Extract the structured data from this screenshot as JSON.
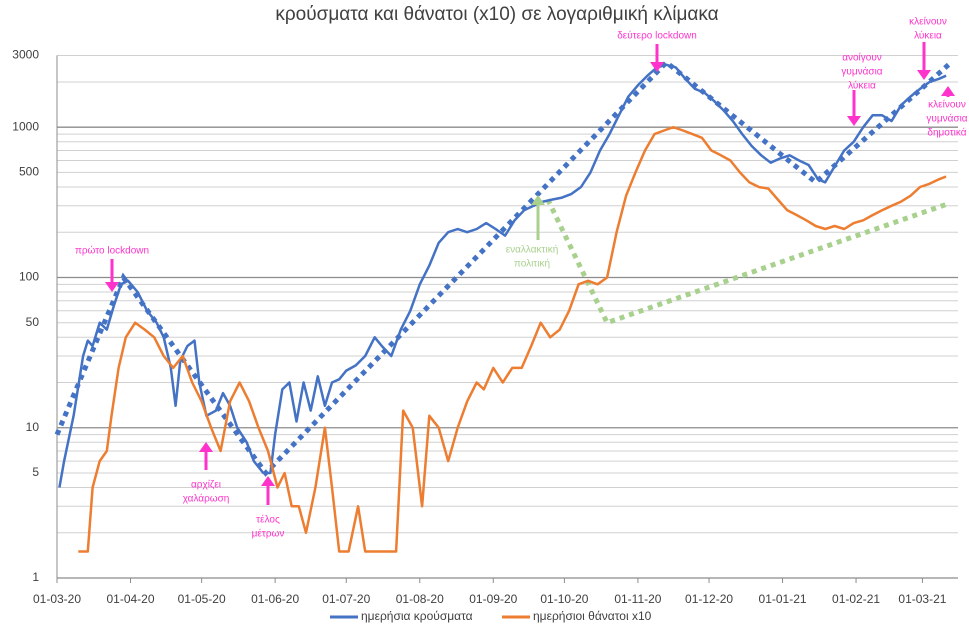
{
  "chart_data": {
    "type": "line",
    "title": "κρούσματα και θάνατοι (x10) σε λογαριθμική κλίμακα",
    "log_scale": true,
    "grid": true,
    "legend": "bottom",
    "xlim": [
      "01-03-20",
      "16-03-21"
    ],
    "xticks": [
      "01-03-20",
      "01-04-20",
      "01-05-20",
      "01-06-20",
      "01-07-20",
      "01-08-20",
      "01-09-20",
      "01-10-20",
      "01-11-20",
      "01-12-20",
      "01-01-21",
      "01-02-21",
      "01-03-21"
    ],
    "ylim": [
      1,
      3000
    ],
    "yticks": [
      1,
      5,
      10,
      50,
      100,
      500,
      1000,
      3000
    ],
    "minor_yticks": [
      2,
      3,
      4,
      5,
      6,
      7,
      8,
      9,
      20,
      30,
      40,
      50,
      60,
      70,
      80,
      90,
      200,
      300,
      400,
      500,
      600,
      700,
      800,
      900,
      2000,
      3000
    ],
    "series": [
      {
        "name": "ημερήσια κρούσματα",
        "color": "#4472c4",
        "x": [
          "02-03-20",
          "04-03-20",
          "08-03-20",
          "12-03-20",
          "14-03-20",
          "16-03-20",
          "19-03-20",
          "22-03-20",
          "25-03-20",
          "28-03-20",
          "31-03-20",
          "04-04-20",
          "08-04-20",
          "12-04-20",
          "15-04-20",
          "18-04-20",
          "20-04-20",
          "22-04-20",
          "25-04-20",
          "28-04-20",
          "30-04-20",
          "03-05-20",
          "07-05-20",
          "10-05-20",
          "13-05-20",
          "16-05-20",
          "20-05-20",
          "23-05-20",
          "27-05-20",
          "30-05-20",
          "01-06-20",
          "04-06-20",
          "07-06-20",
          "10-06-20",
          "13-06-20",
          "16-06-20",
          "19-06-20",
          "22-06-20",
          "25-06-20",
          "28-06-20",
          "01-07-20",
          "05-07-20",
          "09-07-20",
          "13-07-20",
          "16-07-20",
          "20-07-20",
          "24-07-20",
          "28-07-20",
          "01-08-20",
          "05-08-20",
          "09-08-20",
          "13-08-20",
          "17-08-20",
          "21-08-20",
          "25-08-20",
          "29-08-20",
          "02-09-20",
          "06-09-20",
          "10-09-20",
          "14-09-20",
          "18-09-20",
          "22-09-20",
          "26-09-20",
          "30-09-20",
          "04-10-20",
          "08-10-20",
          "12-10-20",
          "16-10-20",
          "20-10-20",
          "24-10-20",
          "28-10-20",
          "01-11-20",
          "05-11-20",
          "09-11-20",
          "13-11-20",
          "17-11-20",
          "21-11-20",
          "25-11-20",
          "29-11-20",
          "03-12-20",
          "07-12-20",
          "11-12-20",
          "15-12-20",
          "19-12-20",
          "23-12-20",
          "27-12-20",
          "31-12-20",
          "04-01-21",
          "08-01-21",
          "12-01-21",
          "16-01-21",
          "19-01-21",
          "23-01-21",
          "27-01-21",
          "31-01-21",
          "04-02-21",
          "08-02-21",
          "12-02-21",
          "16-02-21",
          "20-02-21",
          "24-02-21",
          "28-02-21",
          "04-03-21",
          "08-03-21",
          "11-03-21"
        ],
        "values": [
          4,
          6,
          12,
          30,
          38,
          35,
          50,
          45,
          65,
          90,
          95,
          80,
          60,
          50,
          40,
          25,
          14,
          28,
          35,
          38,
          20,
          12,
          13,
          17,
          14,
          10,
          8,
          6,
          5,
          5,
          9,
          18,
          20,
          11,
          20,
          13,
          22,
          14,
          20,
          21,
          24,
          26,
          30,
          40,
          35,
          30,
          45,
          60,
          90,
          120,
          170,
          200,
          210,
          200,
          210,
          230,
          210,
          190,
          240,
          280,
          300,
          320,
          330,
          340,
          360,
          400,
          500,
          700,
          900,
          1200,
          1600,
          1900,
          2200,
          2500,
          2600,
          2500,
          2100,
          1800,
          1700,
          1500,
          1300,
          1100,
          900,
          750,
          650,
          580,
          620,
          650,
          600,
          560,
          450,
          430,
          550,
          700,
          800,
          1000,
          1200,
          1200,
          1100,
          1400,
          1600,
          1800,
          2000,
          2100,
          2200
        ]
      },
      {
        "name": "ημερήσιοι θάνατοι x10",
        "color": "#ed7d31",
        "x": [
          "10-03-20",
          "14-03-20",
          "16-03-20",
          "19-03-20",
          "22-03-20",
          "24-03-20",
          "27-03-20",
          "30-03-20",
          "03-04-20",
          "07-04-20",
          "11-04-20",
          "15-04-20",
          "19-04-20",
          "23-04-20",
          "27-04-20",
          "01-05-20",
          "05-05-20",
          "09-05-20",
          "13-05-20",
          "17-05-20",
          "21-05-20",
          "25-05-20",
          "29-05-20",
          "02-06-20",
          "05-06-20",
          "08-06-20",
          "11-06-20",
          "14-06-20",
          "18-06-20",
          "22-06-20",
          "25-06-20",
          "28-06-20",
          "02-07-20",
          "06-07-20",
          "09-07-20",
          "14-07-20",
          "18-07-20",
          "22-07-20",
          "25-07-20",
          "29-07-20",
          "02-08-20",
          "05-08-20",
          "09-08-20",
          "13-08-20",
          "17-08-20",
          "21-08-20",
          "25-08-20",
          "28-08-20",
          "01-09-20",
          "05-09-20",
          "09-09-20",
          "13-09-20",
          "17-09-20",
          "21-09-20",
          "25-09-20",
          "29-09-20",
          "03-10-20",
          "07-10-20",
          "11-10-20",
          "15-10-20",
          "19-10-20",
          "23-10-20",
          "27-10-20",
          "31-10-20",
          "04-11-20",
          "08-11-20",
          "12-11-20",
          "16-11-20",
          "20-11-20",
          "24-11-20",
          "28-11-20",
          "02-12-20",
          "06-12-20",
          "10-12-20",
          "14-12-20",
          "18-12-20",
          "22-12-20",
          "26-12-20",
          "30-12-20",
          "03-01-21",
          "07-01-21",
          "11-01-21",
          "15-01-21",
          "19-01-21",
          "23-01-21",
          "27-01-21",
          "31-01-21",
          "04-02-21",
          "08-02-21",
          "12-02-21",
          "16-02-21",
          "20-02-21",
          "24-02-21",
          "28-02-21",
          "04-03-21",
          "08-03-21",
          "11-03-21"
        ],
        "values": [
          1.5,
          1.5,
          4,
          6,
          7,
          12,
          25,
          40,
          50,
          45,
          40,
          30,
          25,
          30,
          20,
          15,
          10,
          7,
          15,
          20,
          15,
          10,
          7,
          4,
          5,
          3,
          3,
          2,
          4,
          10,
          4,
          1.5,
          1.5,
          3,
          1.5,
          1.5,
          1.5,
          1.5,
          13,
          10,
          3,
          12,
          10,
          6,
          10,
          15,
          20,
          18,
          25,
          20,
          25,
          25,
          35,
          50,
          40,
          45,
          60,
          90,
          95,
          90,
          100,
          200,
          350,
          500,
          700,
          900,
          950,
          1000,
          950,
          900,
          850,
          700,
          650,
          600,
          500,
          430,
          400,
          390,
          330,
          280,
          260,
          240,
          220,
          210,
          220,
          210,
          230,
          240,
          260,
          280,
          300,
          320,
          350,
          400,
          420,
          450,
          470
        ]
      }
    ],
    "trend_lines": [
      {
        "color": "#4472c4",
        "x": [
          "01-03-20",
          "29-03-20",
          "28-05-20",
          "13-11-20",
          "15-01-21",
          "12-03-21"
        ],
        "values": [
          9,
          100,
          5,
          2700,
          430,
          2600
        ]
      },
      {
        "color": "#a9d18e",
        "x": [
          "24-09-20",
          "19-10-20",
          "12-03-21"
        ],
        "values": [
          330,
          50,
          310
        ]
      }
    ],
    "annotations": [
      {
        "text": [
          "πρώτο lockdown"
        ],
        "color": "#ff33cc"
      },
      {
        "text": [
          "αρχίζει",
          "χαλάρωση"
        ],
        "color": "#ff33cc"
      },
      {
        "text": [
          "τέλος",
          "μέτρων"
        ],
        "color": "#ff33cc"
      },
      {
        "text": [
          "εναλλακτική",
          "πολιτική"
        ],
        "color": "#a9d18e"
      },
      {
        "text": [
          "δεύτερο lockdown"
        ],
        "color": "#ff33cc"
      },
      {
        "text": [
          "ανοίγουν",
          "γυμνάσια",
          "λύκεια"
        ],
        "color": "#ff33cc"
      },
      {
        "text": [
          "κλείνουν",
          "λύκεια"
        ],
        "color": "#ff33cc"
      },
      {
        "text": [
          "κλείνουν",
          "γυμνάσια",
          "δημοτικά"
        ],
        "color": "#ff33cc"
      }
    ]
  }
}
